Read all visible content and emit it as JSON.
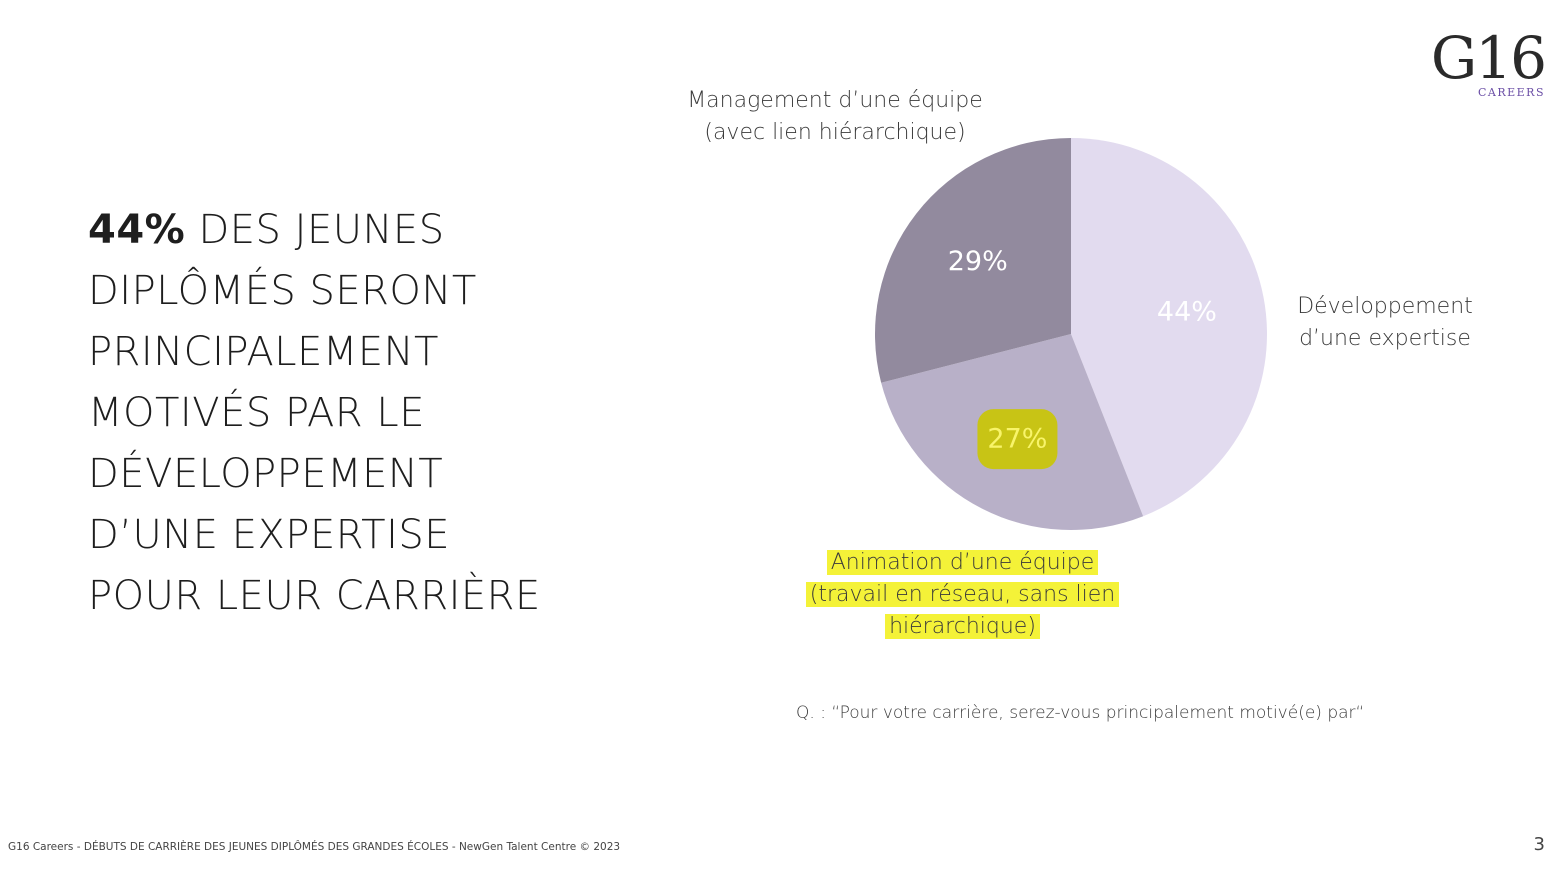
{
  "logo": {
    "mark": "G16",
    "subtitle": "CAREERS"
  },
  "headline": {
    "strong": "44%",
    "rest": "DES JEUNES DIPLÔMÉS SERONT PRINCIPALEMENT MOTIVÉS PAR LE DÉVELOPPEMENT D’UNE EXPERTISE POUR LEUR CARRIÈRE"
  },
  "labels": {
    "management_line1": "Management d’une équipe",
    "management_line2": "(avec lien hiérarchique)",
    "developpement_line1": "Développement",
    "developpement_line2": "d’une expertise",
    "animation_line1": "Animation d’une équipe",
    "animation_line2": "(travail en réseau, sans lien",
    "animation_line3": "hiérarchique)"
  },
  "question": "Q. : “Pour votre carrière, serez-vous principalement motivé(e) par“",
  "footer": "G16 Careers - DÉBUTS DE CARRIÈRE DES JEUNES DIPLÔMÉS DES GRANDES ÉCOLES - NewGen Talent Centre © 2023",
  "page_number": "3",
  "colors": {
    "developpement": "#e2dbef",
    "animation": "#b8b0c8",
    "management": "#928a9e",
    "highlight": "#f4f238",
    "highlight_dark": "#c8c415",
    "slice_label": "#ffffff",
    "brand_accent": "#6b4fa6"
  },
  "chart_data": {
    "type": "pie",
    "title": "",
    "slices": [
      {
        "name": "Développement d’une expertise",
        "value": 44,
        "label": "44%",
        "color": "#e2dbef",
        "highlighted": false
      },
      {
        "name": "Animation d’une équipe (travail en réseau, sans lien hiérarchique)",
        "value": 27,
        "label": "27%",
        "color": "#b8b0c8",
        "highlighted": true
      },
      {
        "name": "Management d’une équipe (avec lien hiérarchique)",
        "value": 29,
        "label": "29%",
        "color": "#928a9e",
        "highlighted": false
      }
    ],
    "start": "12 o'clock",
    "direction": "clockwise",
    "legend": "none"
  }
}
